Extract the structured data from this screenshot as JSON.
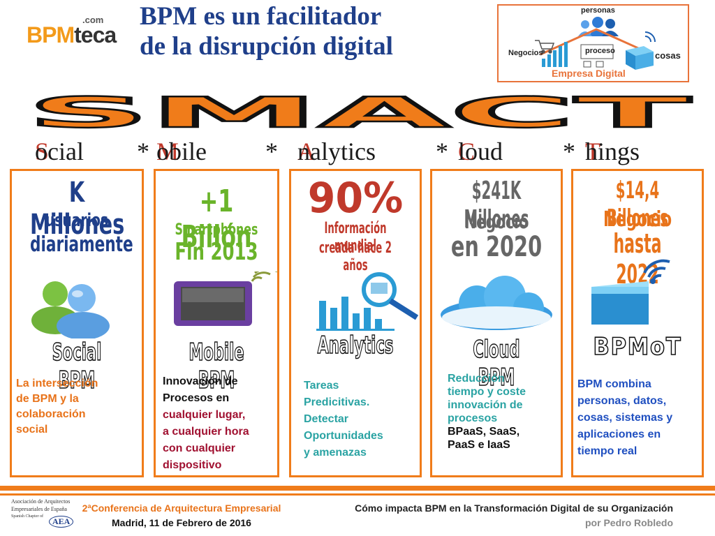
{
  "logo": {
    "com": ".com",
    "bpm": "BPM",
    "teca": "teca"
  },
  "title": {
    "line1": "BPM es un facilitador",
    "line2": "de la disrupción digital"
  },
  "diagram": {
    "personas": "personas",
    "negocios": "Negocios",
    "proceso": "proceso",
    "cosas": "cosas",
    "empresa": "Empresa Digital"
  },
  "banner": "SMACT",
  "pillars": [
    {
      "first": "S",
      "rest": "ocial"
    },
    {
      "first": "M",
      "rest": "obile"
    },
    {
      "first": "A",
      "rest": "nalytics"
    },
    {
      "first": "C",
      "rest": "loud"
    },
    {
      "first": "T",
      "rest": "hings"
    }
  ],
  "separator": "*",
  "columns": [
    {
      "stat1": "K Millones",
      "stat2": "usuarios",
      "stat3": "diariamente",
      "name": "Social BPM",
      "desc": [
        "La intersección",
        "de BPM y la",
        "colaboración",
        "social"
      ],
      "desc_color": "#e8731a"
    },
    {
      "stat1": "+1 Billón",
      "stat2": "Smartphones",
      "stat3": "Fin 2013",
      "name": "Mobile BPM",
      "desc_a": [
        "Innovación de",
        "Procesos en"
      ],
      "desc_b": [
        "cualquier lugar,",
        "a cualquier hora",
        "con cualquier",
        "dispositivo"
      ]
    },
    {
      "stat1": "90%",
      "stat2": "Información mundial",
      "stat3": "creada hace 2 años",
      "name": "Analytics",
      "desc": [
        "Tareas",
        "Predicitivas.",
        "Detectar",
        "Oportunidades",
        "y amenazas"
      ],
      "desc_color": "#2aa3a3"
    },
    {
      "stat1": "$241K Millones",
      "stat2": "Negocio",
      "stat3": "en 2020",
      "name": "Cloud BPM",
      "desc_a": [
        "Reducción",
        "tiempo y coste",
        "innovación de",
        "procesos"
      ],
      "desc_b": [
        "BPaaS, SaaS,",
        "PaaS e IaaS"
      ]
    },
    {
      "stat1": "$14,4 Billones",
      "stat2": "Negocio",
      "stat3": "hasta 2022",
      "name": "BPMoT",
      "desc": [
        "BPM combina",
        "personas,  datos,",
        "cosas, sistemas y",
        "aplicaciones  en",
        "tiempo real"
      ],
      "desc_color": "#1f4fc0"
    }
  ],
  "footer": {
    "org_lines": [
      "Asociación de Arquitectos",
      "Empresariales de España",
      "Spanish Chapter of"
    ],
    "org_badge": "AEA",
    "conf": "2ªConferencia de Arquitectura Empresarial",
    "date": "Madrid, 11 de Febrero de 2016",
    "talk": "Cómo impacta BPM en la Transformación Digital de su Organización",
    "author": "por Pedro Robledo"
  },
  "colors": {
    "orange": "#f07c1a",
    "navy": "#1f3f8a",
    "red": "#c0392b",
    "teal": "#2aa3a3",
    "blue": "#1f4fc0",
    "gray": "#666666",
    "maroon": "#a01030"
  }
}
